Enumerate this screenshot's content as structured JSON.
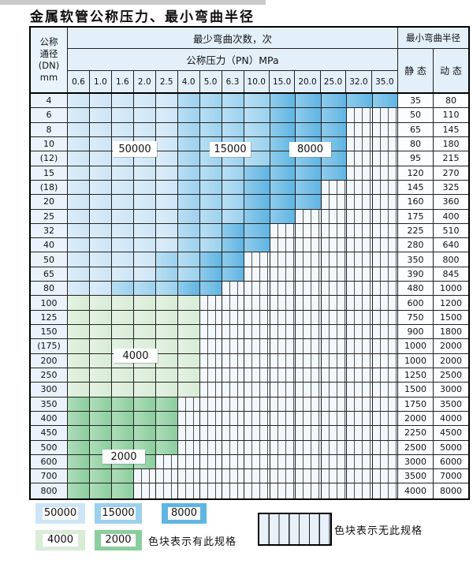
{
  "title": "金属软管公称压力、最小弯曲半径",
  "table": {
    "header": {
      "dn_lines": [
        "公称",
        "通径",
        "(DN)",
        "mm"
      ],
      "bend_cycles": "最少弯曲次数，次",
      "pressure": "公称压力（PN）MPa",
      "min_radius": "最小弯曲半径",
      "static": "静 态",
      "dynamic": "动 态"
    }
  },
  "region_labels": [
    "50000",
    "15000",
    "8000",
    "4000",
    "2000"
  ],
  "legend": {
    "items": [
      {
        "label": "50000",
        "color": "#cde5f6"
      },
      {
        "label": "15000",
        "color": "#9bd1ee"
      },
      {
        "label": "8000",
        "color": "#5fb5e3"
      },
      {
        "label": "4000",
        "color": "#d8ecd6"
      },
      {
        "label": "2000",
        "color": "#8bce9d"
      }
    ],
    "has_spec_text": "色块表示有此规格",
    "no_spec_text": "色块表示无此规格"
  },
  "colors": {
    "cycles_50000": "#cde5f6",
    "cycles_15000": "#9bd1ee",
    "cycles_8000": "#5fb5e3",
    "cycles_4000": "#d8ecd6",
    "cycles_2000": "#8bce9d"
  },
  "chart_data": {
    "type": "table",
    "title": "金属软管公称压力、最小弯曲半径",
    "pressure_columns_MPa": [
      0.6,
      1.0,
      1.6,
      2.0,
      2.5,
      4.0,
      5.0,
      6.3,
      10.0,
      15.0,
      20.0,
      25.0,
      32.0,
      35.0
    ],
    "cycle_color_code": {
      "L": 50000,
      "M": 15000,
      "D": 8000,
      "G": 4000,
      "g": 2000,
      "H": null
    },
    "legend_note": "色块表示有此规格 / 色块表示无此规格",
    "rows": [
      {
        "dn": "4",
        "code": "LLLLLMMMMDDDDD",
        "static": "35",
        "dynamic": "80"
      },
      {
        "dn": "6",
        "code": "LLLLLMMMMDDDHH",
        "static": "50",
        "dynamic": "110"
      },
      {
        "dn": "8",
        "code": "LLLLLMMMMDDDHH",
        "static": "65",
        "dynamic": "145"
      },
      {
        "dn": "10",
        "code": "LLLLLMMMMDDDHH",
        "static": "80",
        "dynamic": "180"
      },
      {
        "dn": "(12)",
        "code": "LLLLLMMMMDDDHH",
        "static": "95",
        "dynamic": "215"
      },
      {
        "dn": "15",
        "code": "LLLLLMMMDDDDHH",
        "static": "120",
        "dynamic": "270"
      },
      {
        "dn": "(18)",
        "code": "LLLLLMMMDDDHHH",
        "static": "145",
        "dynamic": "325"
      },
      {
        "dn": "20",
        "code": "LLLLLMMMDDDHHH",
        "static": "160",
        "dynamic": "360"
      },
      {
        "dn": "25",
        "code": "LLLLLMMMDDHHHH",
        "static": "175",
        "dynamic": "400"
      },
      {
        "dn": "32",
        "code": "LLLLLMMDDHHHHH",
        "static": "225",
        "dynamic": "510"
      },
      {
        "dn": "40",
        "code": "LLLLLMMDDHHHHH",
        "static": "280",
        "dynamic": "640"
      },
      {
        "dn": "50",
        "code": "LLLLMMDDHHHHHH",
        "static": "350",
        "dynamic": "800"
      },
      {
        "dn": "65",
        "code": "LLLLMMDDHHHHHH",
        "static": "390",
        "dynamic": "845"
      },
      {
        "dn": "80",
        "code": "LLMMMDDHHHHHHH",
        "static": "480",
        "dynamic": "1000"
      },
      {
        "dn": "100",
        "code": "GGGGGGHHHHHHHH",
        "static": "600",
        "dynamic": "1200"
      },
      {
        "dn": "125",
        "code": "GGGGGGHHHHHHHH",
        "static": "750",
        "dynamic": "1500"
      },
      {
        "dn": "150",
        "code": "GGGGGGHHHHHHHH",
        "static": "900",
        "dynamic": "1800"
      },
      {
        "dn": "(175)",
        "code": "GGGGGGHHHHHHHH",
        "static": "1000",
        "dynamic": "2000"
      },
      {
        "dn": "200",
        "code": "GGGGGGHHHHHHHH",
        "static": "1000",
        "dynamic": "2000"
      },
      {
        "dn": "250",
        "code": "GGGGGGHHHHHHHH",
        "static": "1250",
        "dynamic": "2500"
      },
      {
        "dn": "300",
        "code": "GGGGGGHHHHHHHH",
        "static": "1500",
        "dynamic": "3000"
      },
      {
        "dn": "350",
        "code": "gggggHHHHHHHHH",
        "static": "1750",
        "dynamic": "3500"
      },
      {
        "dn": "400",
        "code": "gggggHHHHHHHHH",
        "static": "2000",
        "dynamic": "4000"
      },
      {
        "dn": "450",
        "code": "gggggHHHHHHHHH",
        "static": "2250",
        "dynamic": "4500"
      },
      {
        "dn": "500",
        "code": "gggggHHHHHHHHH",
        "static": "2500",
        "dynamic": "5000"
      },
      {
        "dn": "600",
        "code": "ggggHHHHHHHHHH",
        "static": "3000",
        "dynamic": "6000"
      },
      {
        "dn": "700",
        "code": "gggHHHHHHHHHHH",
        "static": "3500",
        "dynamic": "7000"
      },
      {
        "dn": "800",
        "code": "gggHHHHHHHHHHH",
        "static": "4000",
        "dynamic": "8000"
      }
    ]
  }
}
